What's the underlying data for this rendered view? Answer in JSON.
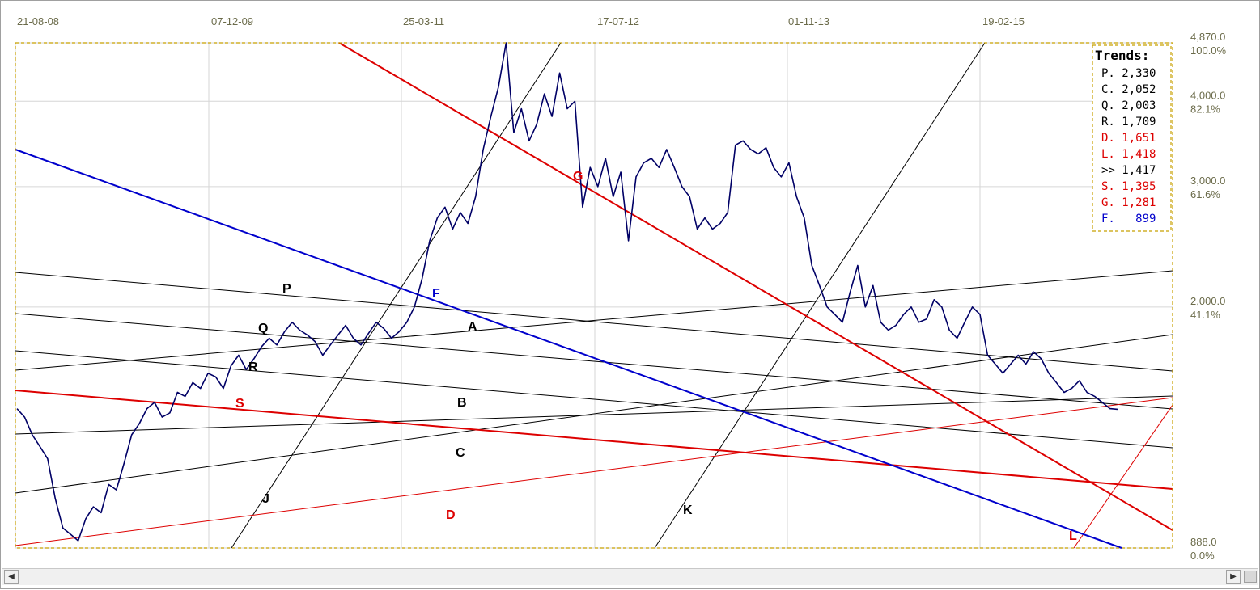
{
  "chart_data": {
    "type": "line",
    "x_tick_labels": [
      "21-08-08",
      "07-12-09",
      "25-03-11",
      "17-07-12",
      "01-11-13",
      "19-02-15"
    ],
    "y_ticks": [
      {
        "value": "4,870.0",
        "pct": "100.0%"
      },
      {
        "value": "4,000.0",
        "pct": "82.1%"
      },
      {
        "value": "3,000.0",
        "pct": "61.6%"
      },
      {
        "value": "2,000.0",
        "pct": "41.1%"
      },
      {
        "value": "888.0",
        "pct": "0.0%"
      }
    ],
    "y_scale": "log",
    "ylim": [
      888,
      4870
    ],
    "grid": true,
    "series": [
      {
        "values": [
          1420,
          1380,
          1300,
          1250,
          1200,
          1050,
          950,
          930,
          910,
          980,
          1020,
          1000,
          1100,
          1080,
          1180,
          1300,
          1350,
          1420,
          1450,
          1380,
          1400,
          1500,
          1480,
          1550,
          1520,
          1600,
          1580,
          1520,
          1640,
          1700,
          1620,
          1680,
          1750,
          1800,
          1760,
          1840,
          1900,
          1850,
          1820,
          1780,
          1700,
          1760,
          1820,
          1880,
          1800,
          1760,
          1830,
          1900,
          1860,
          1800,
          1840,
          1900,
          2000,
          2200,
          2500,
          2700,
          2800,
          2600,
          2750,
          2650,
          2900,
          3400,
          3800,
          4200,
          4870,
          3600,
          3900,
          3500,
          3700,
          4100,
          3800,
          4400,
          3900,
          4000,
          2800,
          3200,
          3000,
          3300,
          2900,
          3150,
          2500,
          3100,
          3250,
          3300,
          3200,
          3400,
          3200,
          3000,
          2900,
          2600,
          2700,
          2600,
          2650,
          2750,
          3450,
          3500,
          3400,
          3350,
          3420,
          3200,
          3100,
          3250,
          2900,
          2700,
          2300,
          2150,
          2000,
          1950,
          1900,
          2100,
          2300,
          2000,
          2150,
          1900,
          1850,
          1880,
          1950,
          2000,
          1900,
          1920,
          2050,
          2000,
          1850,
          1800,
          1900,
          2000,
          1950,
          1700,
          1650,
          1600,
          1650,
          1700,
          1650,
          1720,
          1680,
          1600,
          1550,
          1500,
          1520,
          1560,
          1500,
          1480,
          1450,
          1420,
          1417
        ]
      }
    ],
    "trendlines": [
      {
        "label": "P",
        "color": "#000000"
      },
      {
        "label": "Q",
        "color": "#000000"
      },
      {
        "label": "R",
        "color": "#000000"
      },
      {
        "label": "A",
        "color": "#000000"
      },
      {
        "label": "B",
        "color": "#000000"
      },
      {
        "label": "C",
        "color": "#000000"
      },
      {
        "label": "J",
        "color": "#000000"
      },
      {
        "label": "K",
        "color": "#000000"
      },
      {
        "label": "S",
        "color": "#dd0000"
      },
      {
        "label": "D",
        "color": "#dd0000"
      },
      {
        "label": "G",
        "color": "#dd0000"
      },
      {
        "label": "L",
        "color": "#dd0000"
      },
      {
        "label": "F",
        "color": "#0000cc"
      }
    ],
    "legend": {
      "title": "Trends:",
      "placement": "top-right",
      "items": [
        {
          "text": "P. 2,330",
          "color": "#000000"
        },
        {
          "text": "C. 2,052",
          "color": "#000000"
        },
        {
          "text": "Q. 2,003",
          "color": "#000000"
        },
        {
          "text": "R. 1,709",
          "color": "#000000"
        },
        {
          "text": "D. 1,651",
          "color": "#dd0000"
        },
        {
          "text": "L. 1,418",
          "color": "#dd0000"
        },
        {
          "text": ">> 1,417",
          "color": "#000000"
        },
        {
          "text": "S. 1,395",
          "color": "#dd0000"
        },
        {
          "text": "G. 1,281",
          "color": "#dd0000"
        },
        {
          "text": "F.   899",
          "color": "#0000cc"
        }
      ]
    }
  },
  "colors": {
    "price_line": "#000066",
    "plot_border": "#c8a000",
    "grid": "#d0d0d0"
  }
}
